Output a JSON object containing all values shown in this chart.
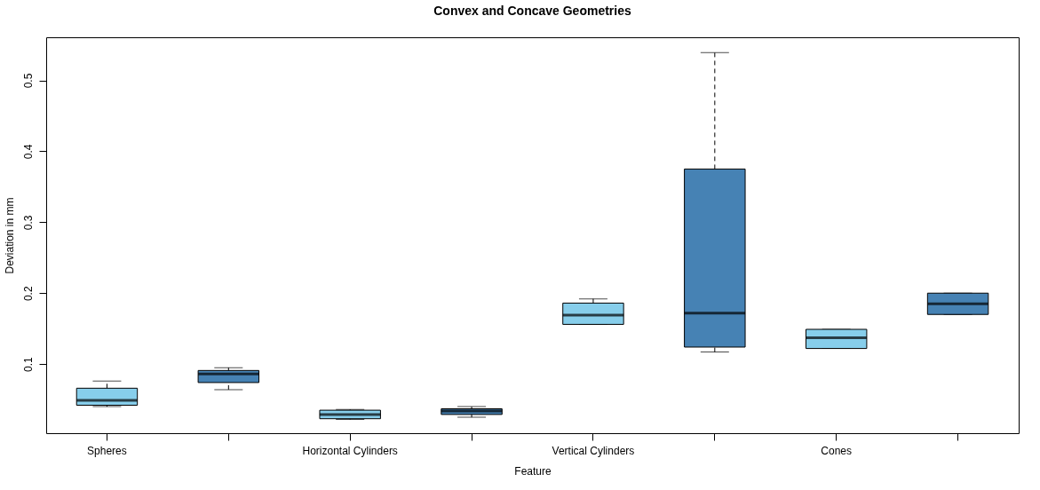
{
  "chart_data": {
    "type": "box",
    "title": "Convex and Concave Geometries",
    "xlabel": "Feature",
    "ylabel": "Deviation in mm",
    "categories": [
      "Spheres",
      null,
      "Horizontal Cylinders",
      null,
      "Vertical Cylinders",
      null,
      "Cones",
      null
    ],
    "colors": [
      "#87ceeb",
      "#4682b4",
      "#87ceeb",
      "#4682b4",
      "#87ceeb",
      "#4682b4",
      "#87ceeb",
      "#4682b4"
    ],
    "boxes": [
      {
        "low": 0.04,
        "q1": 0.042,
        "median": 0.049,
        "q3": 0.066,
        "high": 0.076
      },
      {
        "low": 0.064,
        "q1": 0.074,
        "median": 0.086,
        "q3": 0.091,
        "high": 0.095
      },
      {
        "low": 0.022,
        "q1": 0.023,
        "median": 0.029,
        "q3": 0.035,
        "high": 0.036
      },
      {
        "low": 0.025,
        "q1": 0.029,
        "median": 0.034,
        "q3": 0.037,
        "high": 0.04
      },
      {
        "low": 0.156,
        "q1": 0.156,
        "median": 0.169,
        "q3": 0.186,
        "high": 0.192
      },
      {
        "low": 0.117,
        "q1": 0.124,
        "median": 0.172,
        "q3": 0.375,
        "high": 0.539
      },
      {
        "low": 0.122,
        "q1": 0.122,
        "median": 0.137,
        "q3": 0.149,
        "high": 0.149
      },
      {
        "low": 0.17,
        "q1": 0.17,
        "median": 0.185,
        "q3": 0.2,
        "high": 0.2
      }
    ],
    "ylim": [
      0.0026,
      0.5607
    ],
    "yticks": [
      0.1,
      0.2,
      0.3,
      0.4,
      0.5
    ],
    "grid": false
  }
}
